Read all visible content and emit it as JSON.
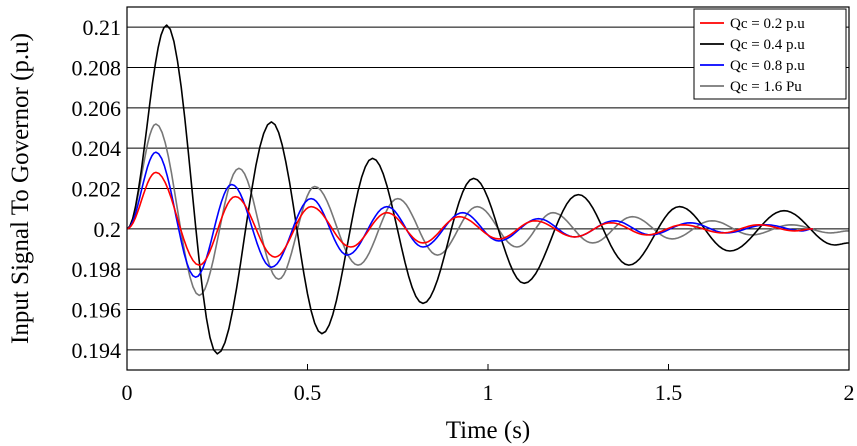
{
  "chart_data": {
    "type": "line",
    "title": "",
    "xlabel": "Time (s)",
    "ylabel": "Input Signal To Governor (p.u)",
    "xlim": [
      0,
      2
    ],
    "ylim": [
      0.193,
      0.211
    ],
    "xticks": [
      0,
      0.5,
      1,
      1.5,
      2
    ],
    "xtick_labels": [
      "0",
      "0.5",
      "1",
      "1.5",
      "2"
    ],
    "yticks": [
      0.194,
      0.196,
      0.198,
      0.2,
      0.202,
      0.204,
      0.206,
      0.208,
      0.21
    ],
    "ytick_labels": [
      "0.194",
      "0.196",
      "0.198",
      "0.2",
      "0.202",
      "0.204",
      "0.206",
      "0.208",
      "0.21"
    ],
    "grid": "horizontal",
    "legend_position": "top-right",
    "series": [
      {
        "name": "Qc = 0.2 p.u",
        "color": "#ff0000",
        "x": [
          0,
          0.08,
          0.2,
          0.3,
          0.41,
          0.51,
          0.62,
          0.72,
          0.82,
          0.92,
          1.03,
          1.13,
          1.24,
          1.34,
          1.44,
          1.54,
          1.65,
          1.75,
          1.85,
          1.9
        ],
        "y": [
          0.2,
          0.2028,
          0.1982,
          0.2016,
          0.1986,
          0.2011,
          0.1991,
          0.2008,
          0.1993,
          0.2006,
          0.1995,
          0.2004,
          0.1996,
          0.2003,
          0.1997,
          0.2002,
          0.1998,
          0.2002,
          0.1999,
          0.2
        ]
      },
      {
        "name": "Qc = 0.4 p.u",
        "color": "#000000",
        "x": [
          0,
          0.11,
          0.25,
          0.4,
          0.54,
          0.68,
          0.82,
          0.96,
          1.1,
          1.25,
          1.39,
          1.53,
          1.67,
          1.82,
          1.96,
          2.0
        ],
        "y": [
          0.2,
          0.2101,
          0.1938,
          0.2053,
          0.1948,
          0.2035,
          0.1963,
          0.2025,
          0.1973,
          0.2017,
          0.1982,
          0.2011,
          0.1989,
          0.2009,
          0.1992,
          0.1993
        ]
      },
      {
        "name": "Qc = 0.8 p.u",
        "color": "#0000ff",
        "x": [
          0,
          0.08,
          0.19,
          0.29,
          0.4,
          0.51,
          0.61,
          0.72,
          0.82,
          0.93,
          1.03,
          1.14,
          1.24,
          1.35,
          1.45,
          1.56,
          1.66,
          1.77,
          1.87,
          1.9
        ],
        "y": [
          0.2,
          0.2038,
          0.1976,
          0.2022,
          0.1981,
          0.2015,
          0.1987,
          0.2011,
          0.1991,
          0.2008,
          0.1994,
          0.2005,
          0.1996,
          0.2004,
          0.1997,
          0.2003,
          0.1998,
          0.2002,
          0.1999,
          0.2
        ]
      },
      {
        "name": "Qc = 1.6 Pu",
        "color": "#777777",
        "x": [
          0,
          0.08,
          0.2,
          0.31,
          0.42,
          0.52,
          0.64,
          0.75,
          0.86,
          0.97,
          1.08,
          1.18,
          1.29,
          1.4,
          1.51,
          1.62,
          1.73,
          1.84,
          1.95,
          2.0
        ],
        "y": [
          0.2,
          0.2052,
          0.1967,
          0.203,
          0.1975,
          0.2021,
          0.1982,
          0.2015,
          0.1987,
          0.2011,
          0.1991,
          0.2008,
          0.1993,
          0.2006,
          0.1995,
          0.2004,
          0.1997,
          0.2002,
          0.1998,
          0.1999
        ]
      }
    ]
  }
}
